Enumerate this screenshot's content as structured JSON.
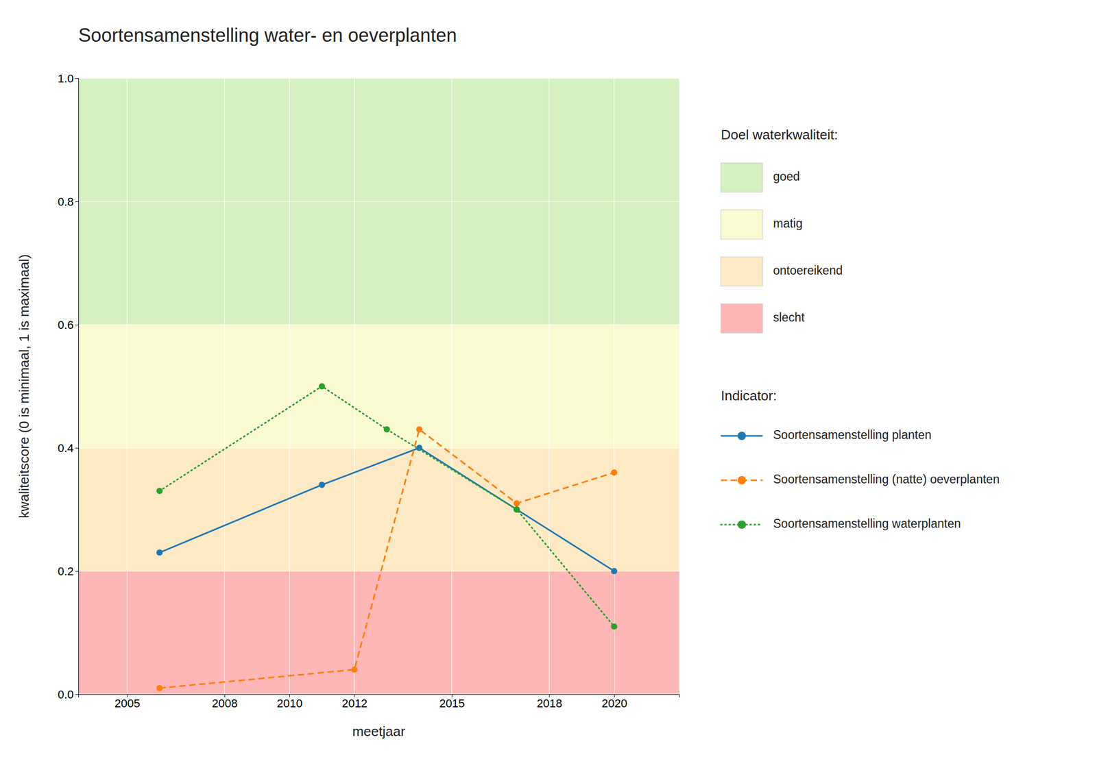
{
  "chart_data": {
    "type": "line",
    "title": "Soortensamenstelling water- en oeverplanten",
    "x_label": "meetjaar",
    "y_label": "kwaliteitscore (0 is minimaal, 1 is maximaal)",
    "xlim": [
      2003.5,
      2022
    ],
    "ylim": [
      0.0,
      1.0
    ],
    "xticks": [
      2005,
      2008,
      2010,
      2012,
      2015,
      2018,
      2020
    ],
    "yticks": [
      {
        "value": 0.0,
        "label": "0.0"
      },
      0.2,
      0.4,
      0.6,
      0.8,
      {
        "value": 1.0,
        "label": "1.0"
      }
    ],
    "grid": true,
    "legend": "right",
    "band_legend_title": "Doel waterkwaliteit:",
    "bands": [
      {
        "name": "goed",
        "color": "#d5f0c1",
        "range": [
          0.6,
          1.0
        ]
      },
      {
        "name": "matig",
        "color": "#fafad2",
        "range": [
          0.4,
          0.6
        ]
      },
      {
        "name": "ontoereikend",
        "color": "#fde9c4",
        "range": [
          0.2,
          0.4
        ]
      },
      {
        "name": "slecht",
        "color": "#ffb6b6",
        "range": [
          0.0,
          0.2
        ]
      }
    ],
    "series_legend_title": "Indicator:",
    "series": [
      {
        "name": "Soortensamenstelling planten",
        "line_style": "solid",
        "marker": "circle",
        "x": [
          2006,
          2011,
          2014,
          2017,
          2020
        ],
        "values": [
          0.23,
          0.34,
          0.4,
          0.3,
          0.2
        ]
      },
      {
        "name": "Soortensamenstelling (natte) oeverplanten",
        "line_style": "dashed",
        "marker": "circle",
        "x": [
          2006,
          2012,
          2014,
          2017,
          2020
        ],
        "values": [
          0.01,
          0.04,
          0.43,
          0.31,
          0.36
        ]
      },
      {
        "name": "Soortensamenstelling waterplanten",
        "line_style": "dotted",
        "marker": "circle",
        "x": [
          2006,
          2011,
          2013,
          2017,
          2020
        ],
        "values": [
          0.33,
          0.5,
          0.43,
          0.3,
          0.11
        ]
      }
    ]
  }
}
